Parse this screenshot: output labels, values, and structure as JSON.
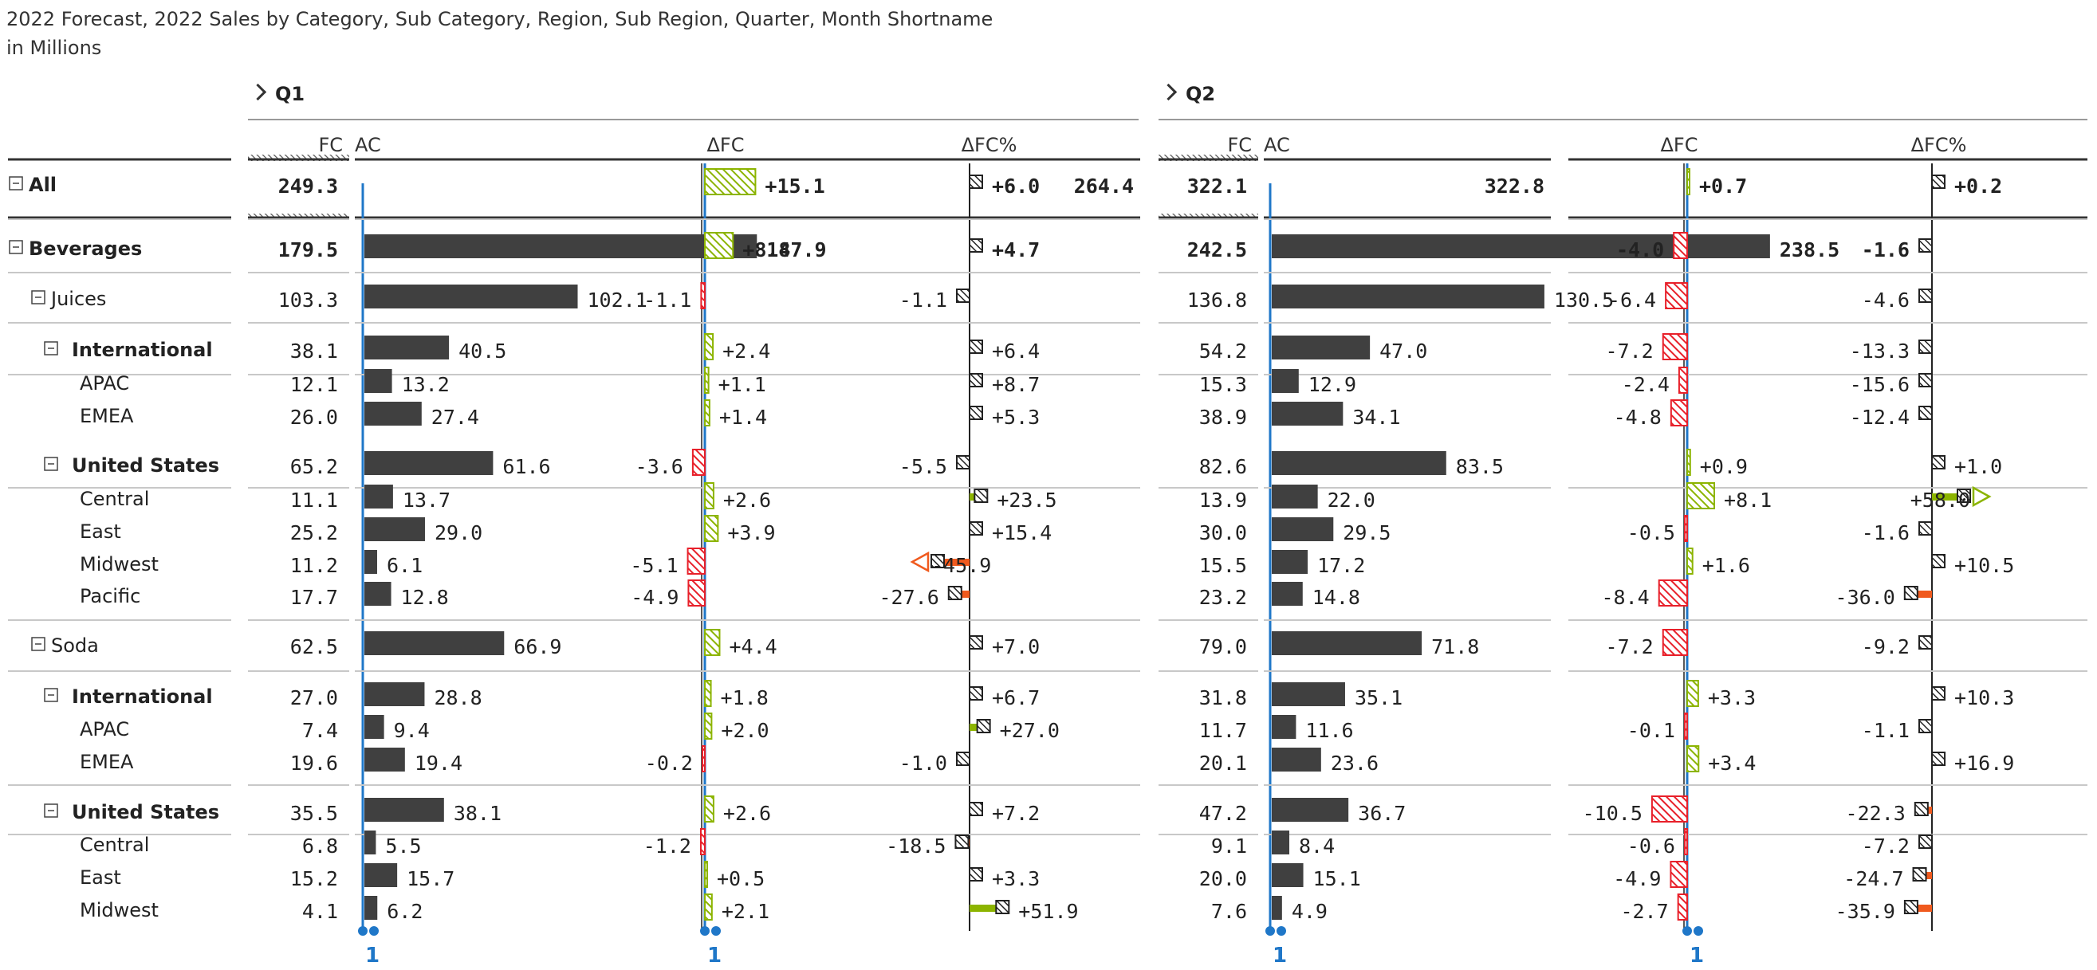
{
  "title": "2022 Forecast, 2022 Sales by Category, Sub Category, Region, Sub Region, Quarter, Month Shortname",
  "subtitle": "in Millions",
  "quarters": [
    "Q1",
    "Q2"
  ],
  "column_headers": {
    "fc": "FC",
    "ac": "AC",
    "dfc": "ΔFC",
    "dfcp": "ΔFC%"
  },
  "scale_marker": "1",
  "colors": {
    "bar_ac": "#404040",
    "positive": "#8cb400",
    "negative": "#e8202a",
    "pct_negative": "#f05a1e",
    "axis": "#1f77c8",
    "rule": "#333333",
    "grid": "#c8c8c8"
  },
  "chart_data": {
    "type": "table",
    "columns": [
      "FC",
      "AC",
      "ΔFC",
      "ΔFC%"
    ],
    "rows": [
      {
        "label": "All",
        "level": 0,
        "toggle": true,
        "bold": true,
        "total": true,
        "q1": {
          "fc": "249.3",
          "ac": "264.4",
          "dfc": "+15.1",
          "dfcp": "+6.0"
        },
        "q2": {
          "fc": "322.1",
          "ac": "322.8",
          "dfc": "+0.7",
          "dfcp": "+0.2"
        }
      },
      {
        "label": "Beverages",
        "level": 0,
        "toggle": true,
        "bold": true,
        "q1": {
          "fc": "179.5",
          "ac": "187.9",
          "dfc": "+8.4",
          "dfcp": "+4.7"
        },
        "q2": {
          "fc": "242.5",
          "ac": "238.5",
          "dfc": "-4.0",
          "dfcp": "-1.6"
        }
      },
      {
        "label": "Juices",
        "level": 1,
        "toggle": true,
        "bold": false,
        "q1": {
          "fc": "103.3",
          "ac": "102.1",
          "dfc": "-1.1",
          "dfcp": "-1.1"
        },
        "q2": {
          "fc": "136.8",
          "ac": "130.5",
          "dfc": "-6.4",
          "dfcp": "-4.6"
        }
      },
      {
        "label": "International",
        "level": 2,
        "toggle": true,
        "bold": false,
        "q1": {
          "fc": "38.1",
          "ac": "40.5",
          "dfc": "+2.4",
          "dfcp": "+6.4"
        },
        "q2": {
          "fc": "54.2",
          "ac": "47.0",
          "dfc": "-7.2",
          "dfcp": "-13.3"
        }
      },
      {
        "label": "APAC",
        "level": 3,
        "toggle": false,
        "bold": false,
        "q1": {
          "fc": "12.1",
          "ac": "13.2",
          "dfc": "+1.1",
          "dfcp": "+8.7"
        },
        "q2": {
          "fc": "15.3",
          "ac": "12.9",
          "dfc": "-2.4",
          "dfcp": "-15.6"
        }
      },
      {
        "label": "EMEA",
        "level": 3,
        "toggle": false,
        "bold": false,
        "q1": {
          "fc": "26.0",
          "ac": "27.4",
          "dfc": "+1.4",
          "dfcp": "+5.3"
        },
        "q2": {
          "fc": "38.9",
          "ac": "34.1",
          "dfc": "-4.8",
          "dfcp": "-12.4"
        }
      },
      {
        "label": "United States",
        "level": 2,
        "toggle": true,
        "bold": false,
        "q1": {
          "fc": "65.2",
          "ac": "61.6",
          "dfc": "-3.6",
          "dfcp": "-5.5"
        },
        "q2": {
          "fc": "82.6",
          "ac": "83.5",
          "dfc": "+0.9",
          "dfcp": "+1.0"
        }
      },
      {
        "label": "Central",
        "level": 3,
        "toggle": false,
        "bold": false,
        "q1": {
          "fc": "11.1",
          "ac": "13.7",
          "dfc": "+2.6",
          "dfcp": "+23.5"
        },
        "q2": {
          "fc": "13.9",
          "ac": "22.0",
          "dfc": "+8.1",
          "dfcp": "+58.0"
        }
      },
      {
        "label": "East",
        "level": 3,
        "toggle": false,
        "bold": false,
        "q1": {
          "fc": "25.2",
          "ac": "29.0",
          "dfc": "+3.9",
          "dfcp": "+15.4"
        },
        "q2": {
          "fc": "30.0",
          "ac": "29.5",
          "dfc": "-0.5",
          "dfcp": "-1.6"
        }
      },
      {
        "label": "Midwest",
        "level": 3,
        "toggle": false,
        "bold": false,
        "q1": {
          "fc": "11.2",
          "ac": "6.1",
          "dfc": "-5.1",
          "dfcp": "-45.9"
        },
        "q2": {
          "fc": "15.5",
          "ac": "17.2",
          "dfc": "+1.6",
          "dfcp": "+10.5"
        }
      },
      {
        "label": "Pacific",
        "level": 3,
        "toggle": false,
        "bold": false,
        "q1": {
          "fc": "17.7",
          "ac": "12.8",
          "dfc": "-4.9",
          "dfcp": "-27.6"
        },
        "q2": {
          "fc": "23.2",
          "ac": "14.8",
          "dfc": "-8.4",
          "dfcp": "-36.0"
        }
      },
      {
        "label": "Soda",
        "level": 1,
        "toggle": true,
        "bold": false,
        "q1": {
          "fc": "62.5",
          "ac": "66.9",
          "dfc": "+4.4",
          "dfcp": "+7.0"
        },
        "q2": {
          "fc": "79.0",
          "ac": "71.8",
          "dfc": "-7.2",
          "dfcp": "-9.2"
        }
      },
      {
        "label": "International",
        "level": 2,
        "toggle": true,
        "bold": false,
        "q1": {
          "fc": "27.0",
          "ac": "28.8",
          "dfc": "+1.8",
          "dfcp": "+6.7"
        },
        "q2": {
          "fc": "31.8",
          "ac": "35.1",
          "dfc": "+3.3",
          "dfcp": "+10.3"
        }
      },
      {
        "label": "APAC",
        "level": 3,
        "toggle": false,
        "bold": false,
        "q1": {
          "fc": "7.4",
          "ac": "9.4",
          "dfc": "+2.0",
          "dfcp": "+27.0"
        },
        "q2": {
          "fc": "11.7",
          "ac": "11.6",
          "dfc": "-0.1",
          "dfcp": "-1.1"
        }
      },
      {
        "label": "EMEA",
        "level": 3,
        "toggle": false,
        "bold": false,
        "q1": {
          "fc": "19.6",
          "ac": "19.4",
          "dfc": "-0.2",
          "dfcp": "-1.0"
        },
        "q2": {
          "fc": "20.1",
          "ac": "23.6",
          "dfc": "+3.4",
          "dfcp": "+16.9"
        }
      },
      {
        "label": "United States",
        "level": 2,
        "toggle": true,
        "bold": false,
        "q1": {
          "fc": "35.5",
          "ac": "38.1",
          "dfc": "+2.6",
          "dfcp": "+7.2"
        },
        "q2": {
          "fc": "47.2",
          "ac": "36.7",
          "dfc": "-10.5",
          "dfcp": "-22.3"
        }
      },
      {
        "label": "Central",
        "level": 3,
        "toggle": false,
        "bold": false,
        "q1": {
          "fc": "6.8",
          "ac": "5.5",
          "dfc": "-1.2",
          "dfcp": "-18.5"
        },
        "q2": {
          "fc": "9.1",
          "ac": "8.4",
          "dfc": "-0.6",
          "dfcp": "-7.2"
        }
      },
      {
        "label": "East",
        "level": 3,
        "toggle": false,
        "bold": false,
        "q1": {
          "fc": "15.2",
          "ac": "15.7",
          "dfc": "+0.5",
          "dfcp": "+3.3"
        },
        "q2": {
          "fc": "20.0",
          "ac": "15.1",
          "dfc": "-4.9",
          "dfcp": "-24.7"
        }
      },
      {
        "label": "Midwest",
        "level": 3,
        "toggle": false,
        "bold": false,
        "q1": {
          "fc": "4.1",
          "ac": "6.2",
          "dfc": "+2.1",
          "dfcp": "+51.9"
        },
        "q2": {
          "fc": "7.6",
          "ac": "4.9",
          "dfc": "-2.7",
          "dfcp": "-35.9"
        }
      }
    ]
  }
}
